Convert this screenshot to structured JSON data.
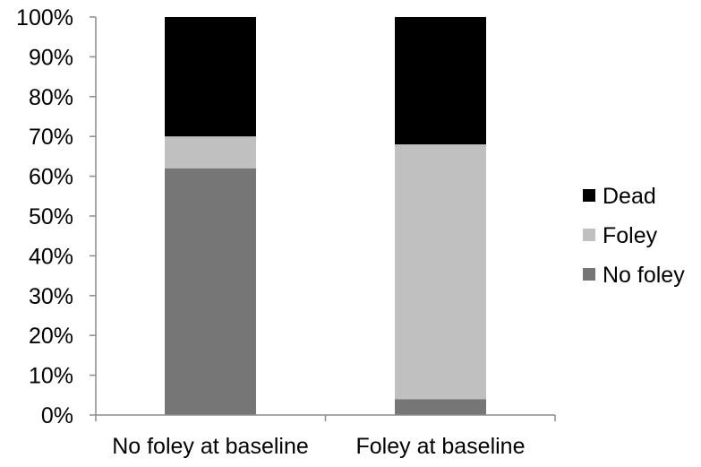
{
  "chart_data": {
    "type": "bar",
    "stacked": true,
    "title": "",
    "xlabel": "",
    "ylabel": "",
    "categories": [
      "No foley at baseline",
      "Foley at baseline"
    ],
    "series": [
      {
        "name": "No foley",
        "values": [
          62,
          4
        ],
        "color": "#767676"
      },
      {
        "name": "Foley",
        "values": [
          8,
          64
        ],
        "color": "#c0c0c0"
      },
      {
        "name": "Dead",
        "values": [
          30,
          32
        ],
        "color": "#000000"
      }
    ],
    "ylim": [
      0,
      100
    ],
    "y_ticks": [
      "0%",
      "10%",
      "20%",
      "30%",
      "40%",
      "50%",
      "60%",
      "70%",
      "80%",
      "90%",
      "100%"
    ],
    "y_unit": "percent",
    "legend_order": [
      "Dead",
      "Foley",
      "No foley"
    ],
    "legend_position": "right",
    "grid": false
  }
}
